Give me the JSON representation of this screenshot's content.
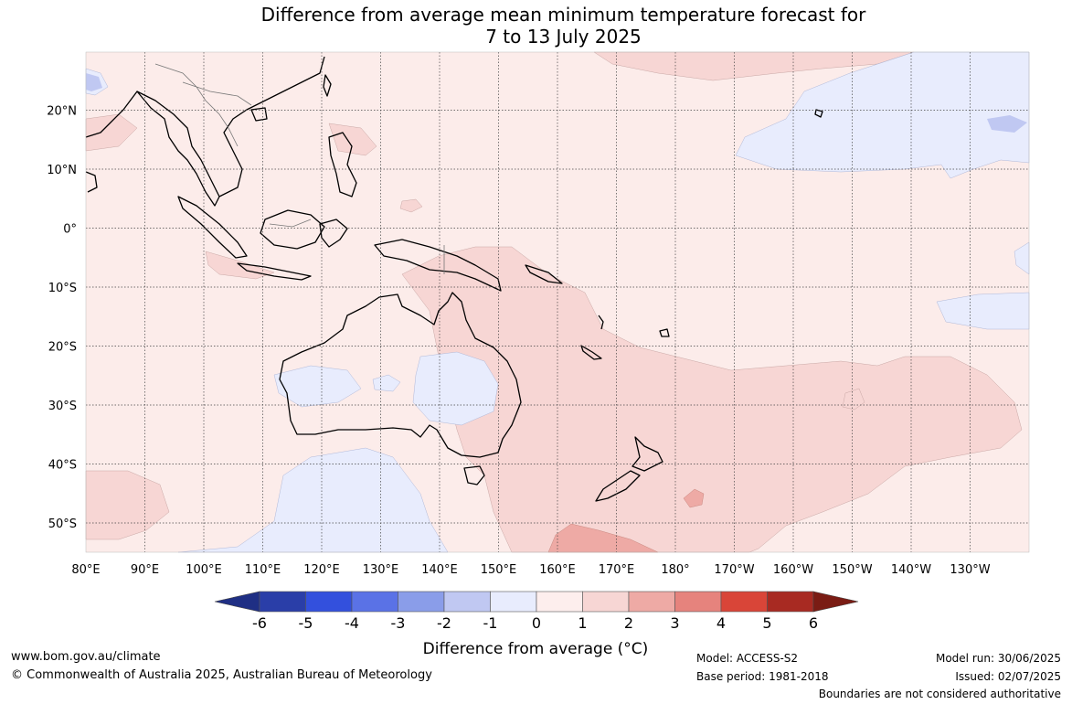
{
  "title": {
    "line1": "Difference from average mean minimum temperature forecast for",
    "line2": "7 to 13 July 2025"
  },
  "map": {
    "lon_labels": [
      "80°E",
      "90°E",
      "100°E",
      "110°E",
      "120°E",
      "130°E",
      "140°E",
      "150°E",
      "160°E",
      "170°E",
      "180°",
      "170°W",
      "160°W",
      "150°W",
      "140°W",
      "130°W"
    ],
    "lat_labels": [
      "20°N",
      "10°N",
      "0°",
      "10°S",
      "20°S",
      "30°S",
      "40°S",
      "50°S"
    ]
  },
  "legend": {
    "ticks": [
      "-6",
      "-5",
      "-4",
      "-3",
      "-2",
      "-1",
      "0",
      "1",
      "2",
      "3",
      "4",
      "5",
      "6"
    ],
    "colors": [
      "#2a3ea8",
      "#3350dd",
      "#5a72e6",
      "#8a9de9",
      "#c0c8f2",
      "#e8ecfd",
      "#fdeeed",
      "#f7d6d4",
      "#eeaaa5",
      "#e6837d",
      "#d94538",
      "#a82a22"
    ],
    "low_arrow_color": "#1f2f84",
    "high_arrow_color": "#7a1c14",
    "label": "Difference from average (°C)"
  },
  "footer": {
    "website": "www.bom.gov.au/climate",
    "copyright": "© Commonwealth of Australia 2025, Australian Bureau of Meteorology",
    "model": "Model: ACCESS-S2",
    "base_period": "Base period: 1981-2018",
    "model_run": "Model run: 30/06/2025",
    "issued": "Issued: 02/07/2025",
    "disclaimer": "Boundaries are not considered authoritative"
  }
}
